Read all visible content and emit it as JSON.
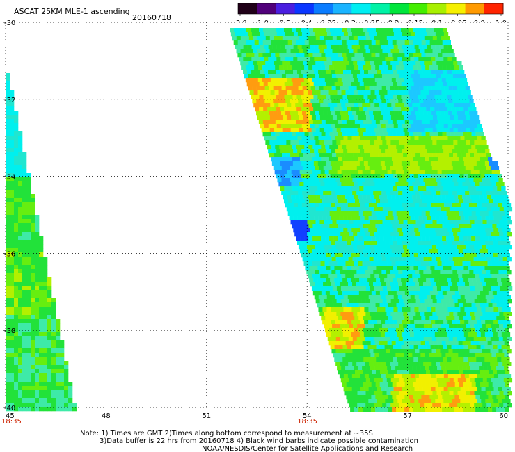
{
  "header": {
    "title": "ASCAT 25KM MLE-1 ascending",
    "date": "20160718"
  },
  "colorbar": {
    "tick_labels": [
      "-3.0",
      "-1.0",
      "-0.5",
      "-0.4",
      "-0.35",
      "-0.3",
      "-0.25",
      "-0.2",
      "-0.15",
      "-0.1",
      "-0.05",
      "0.0",
      "1.0"
    ],
    "colors": [
      "#200018",
      "#50007a",
      "#4a1ee0",
      "#0a36ff",
      "#0a7cff",
      "#1ab4ff",
      "#00eef2",
      "#00f2a6",
      "#00e63c",
      "#44ee00",
      "#a8f000",
      "#f6f000",
      "#ff9a00",
      "#ff2400"
    ]
  },
  "map": {
    "lon_range": [
      45,
      60
    ],
    "lat_range": [
      -40,
      -30
    ],
    "lon_ticks": [
      "45",
      "48",
      "51",
      "54",
      "57",
      "60"
    ],
    "lat_ticks": [
      "-30",
      "-32",
      "-34",
      "-36",
      "-38",
      "-40"
    ],
    "grid": "dotted",
    "swath_times": [
      {
        "label": "18:35",
        "lon": 45
      },
      {
        "label": "18:35",
        "lon": 54
      }
    ]
  },
  "notes": {
    "line1": "Note: 1) Times are GMT 2)Times along bottom correspond to measurement at ~35S",
    "line2": "3)Data buffer is 22 hrs from 20160718 4) Black wind barbs indicate possible contamination",
    "line3": "NOAA/NESDIS/Center for Satellite Applications and Research"
  }
}
